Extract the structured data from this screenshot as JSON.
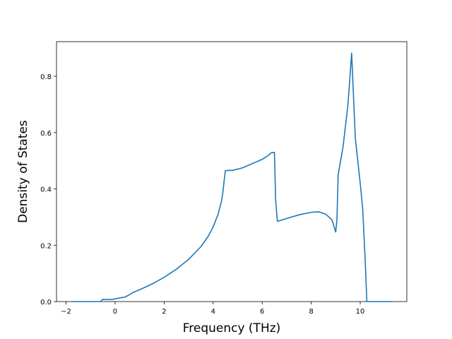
{
  "chart_data": {
    "type": "line",
    "x_label": "Frequency (THz)",
    "y_label": "Density of States",
    "xlim": [
      -2.39,
      11.9
    ],
    "ylim": [
      0,
      0.923
    ],
    "xticks": [
      {
        "value": -2,
        "label": "−2"
      },
      0,
      2,
      4,
      6,
      8,
      10
    ],
    "yticks": [
      {
        "value": 0,
        "label": "0.0"
      },
      0.2,
      0.4,
      0.6,
      0.8
    ],
    "series": [
      {
        "color": "#1f77b4",
        "x": [
          -1.76,
          -0.6,
          -0.5,
          -0.3,
          -0.1,
          0.2,
          0.4,
          0.6,
          0.7,
          1.0,
          1.5,
          2.0,
          2.5,
          3.0,
          3.5,
          3.8,
          4.0,
          4.2,
          4.35,
          4.4,
          4.45,
          4.5,
          4.8,
          5.2,
          5.6,
          6.0,
          6.3,
          6.35,
          6.5,
          6.55,
          6.62,
          7.0,
          7.5,
          8.0,
          8.3,
          8.6,
          8.85,
          9.0,
          9.05,
          9.1,
          9.3,
          9.5,
          9.65,
          9.7,
          9.8,
          10.0,
          10.1,
          10.2,
          10.27,
          11.3
        ],
        "values": [
          0,
          0,
          0.008,
          0.007,
          0.008,
          0.013,
          0.016,
          0.025,
          0.031,
          0.042,
          0.062,
          0.086,
          0.115,
          0.15,
          0.195,
          0.232,
          0.265,
          0.31,
          0.36,
          0.39,
          0.43,
          0.465,
          0.466,
          0.475,
          0.49,
          0.505,
          0.522,
          0.528,
          0.53,
          0.36,
          0.285,
          0.295,
          0.308,
          0.317,
          0.319,
          0.31,
          0.29,
          0.247,
          0.29,
          0.45,
          0.55,
          0.7,
          0.882,
          0.78,
          0.58,
          0.42,
          0.33,
          0.15,
          0,
          0
        ]
      }
    ]
  }
}
